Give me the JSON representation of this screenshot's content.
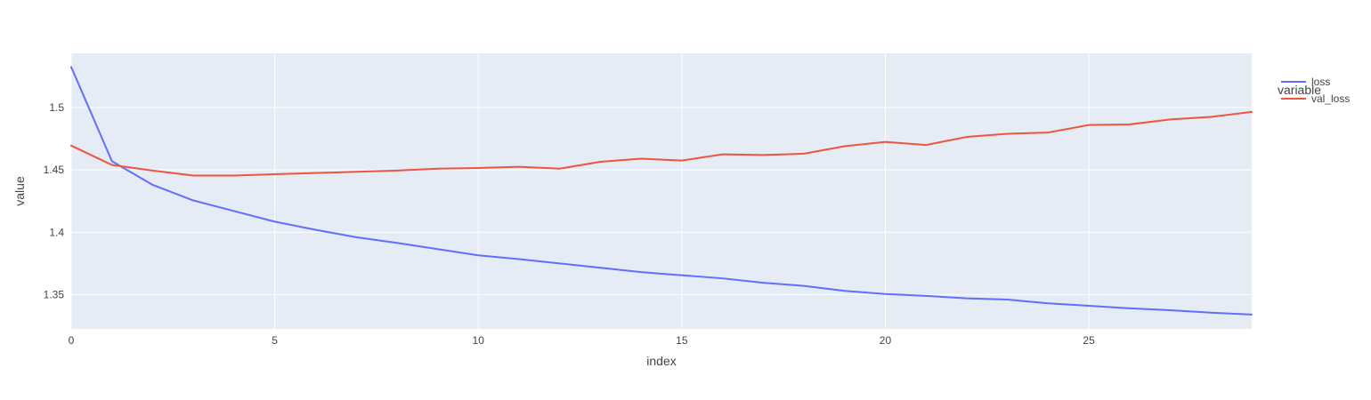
{
  "chart_data": {
    "type": "line",
    "title": "",
    "xlabel": "index",
    "ylabel": "value",
    "xlim": [
      0,
      29
    ],
    "ylim": [
      1.3225,
      1.5435
    ],
    "x_ticks": [
      0,
      5,
      10,
      15,
      20,
      25
    ],
    "y_ticks": [
      1.35,
      1.4,
      1.45,
      1.5
    ],
    "y_tick_labels": [
      "1.35",
      "1.4",
      "1.45",
      "1.5"
    ],
    "grid": true,
    "legend": {
      "title": "variable",
      "placement": "top-right-outside"
    },
    "plot_background": "#e5ecf6",
    "x": [
      0,
      1,
      2,
      3,
      4,
      5,
      6,
      7,
      8,
      9,
      10,
      11,
      12,
      13,
      14,
      15,
      16,
      17,
      18,
      19,
      20,
      21,
      22,
      23,
      24,
      25,
      26,
      27,
      28,
      29
    ],
    "series": [
      {
        "name": "loss",
        "color": "#636efa",
        "values": [
          1.5325,
          1.457,
          1.438,
          1.4255,
          1.417,
          1.4085,
          1.402,
          1.396,
          1.3915,
          1.3865,
          1.3815,
          1.3785,
          1.375,
          1.3715,
          1.368,
          1.3655,
          1.363,
          1.3595,
          1.357,
          1.353,
          1.3505,
          1.349,
          1.347,
          1.346,
          1.343,
          1.341,
          1.339,
          1.3375,
          1.3355,
          1.334
        ]
      },
      {
        "name": "val_loss",
        "color": "#ef553b",
        "values": [
          1.4695,
          1.454,
          1.4495,
          1.4455,
          1.4455,
          1.4465,
          1.4475,
          1.4485,
          1.4495,
          1.451,
          1.4515,
          1.4525,
          1.451,
          1.4565,
          1.459,
          1.4575,
          1.4625,
          1.462,
          1.463,
          1.469,
          1.4725,
          1.47,
          1.4765,
          1.479,
          1.48,
          1.486,
          1.4865,
          1.4905,
          1.4925,
          1.4965
        ]
      }
    ]
  }
}
